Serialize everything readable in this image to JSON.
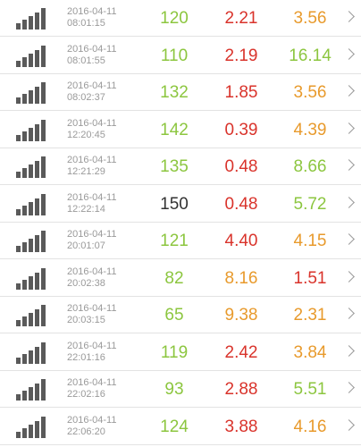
{
  "colors": {
    "green": "#8cc63f",
    "dark": "#333333",
    "red": "#d9332b",
    "orange": "#e89a2c",
    "signal": "#5a5a5a",
    "muted": "#9a9a9a"
  },
  "icons": {
    "signal": "signal-bars-icon",
    "chevron": "chevron-right-icon"
  },
  "rows": [
    {
      "date": "2016-04-11",
      "time": "08:01:15",
      "v1": "120",
      "v1_color": "#8cc63f",
      "v2": "2.21",
      "v2_color": "#d9332b",
      "v3": "3.56",
      "v3_color": "#e89a2c"
    },
    {
      "date": "2016-04-11",
      "time": "08:01:55",
      "v1": "110",
      "v1_color": "#8cc63f",
      "v2": "2.19",
      "v2_color": "#d9332b",
      "v3": "16.14",
      "v3_color": "#8cc63f"
    },
    {
      "date": "2016-04-11",
      "time": "08:02:37",
      "v1": "132",
      "v1_color": "#8cc63f",
      "v2": "1.85",
      "v2_color": "#d9332b",
      "v3": "3.56",
      "v3_color": "#e89a2c"
    },
    {
      "date": "2016-04-11",
      "time": "12:20:45",
      "v1": "142",
      "v1_color": "#8cc63f",
      "v2": "0.39",
      "v2_color": "#d9332b",
      "v3": "4.39",
      "v3_color": "#e89a2c"
    },
    {
      "date": "2016-04-11",
      "time": "12:21:29",
      "v1": "135",
      "v1_color": "#8cc63f",
      "v2": "0.48",
      "v2_color": "#d9332b",
      "v3": "8.66",
      "v3_color": "#8cc63f"
    },
    {
      "date": "2016-04-11",
      "time": "12:22:14",
      "v1": "150",
      "v1_color": "#333333",
      "v2": "0.48",
      "v2_color": "#d9332b",
      "v3": "5.72",
      "v3_color": "#8cc63f"
    },
    {
      "date": "2016-04-11",
      "time": "20:01:07",
      "v1": "121",
      "v1_color": "#8cc63f",
      "v2": "4.40",
      "v2_color": "#d9332b",
      "v3": "4.15",
      "v3_color": "#e89a2c"
    },
    {
      "date": "2016-04-11",
      "time": "20:02:38",
      "v1": "82",
      "v1_color": "#8cc63f",
      "v2": "8.16",
      "v2_color": "#e89a2c",
      "v3": "1.51",
      "v3_color": "#d9332b"
    },
    {
      "date": "2016-04-11",
      "time": "20:03:15",
      "v1": "65",
      "v1_color": "#8cc63f",
      "v2": "9.38",
      "v2_color": "#e89a2c",
      "v3": "2.31",
      "v3_color": "#e89a2c"
    },
    {
      "date": "2016-04-11",
      "time": "22:01:16",
      "v1": "119",
      "v1_color": "#8cc63f",
      "v2": "2.42",
      "v2_color": "#d9332b",
      "v3": "3.84",
      "v3_color": "#e89a2c"
    },
    {
      "date": "2016-04-11",
      "time": "22:02:16",
      "v1": "93",
      "v1_color": "#8cc63f",
      "v2": "2.88",
      "v2_color": "#d9332b",
      "v3": "5.51",
      "v3_color": "#8cc63f"
    },
    {
      "date": "2016-04-11",
      "time": "22:06:20",
      "v1": "124",
      "v1_color": "#8cc63f",
      "v2": "3.88",
      "v2_color": "#d9332b",
      "v3": "4.16",
      "v3_color": "#e89a2c"
    }
  ]
}
